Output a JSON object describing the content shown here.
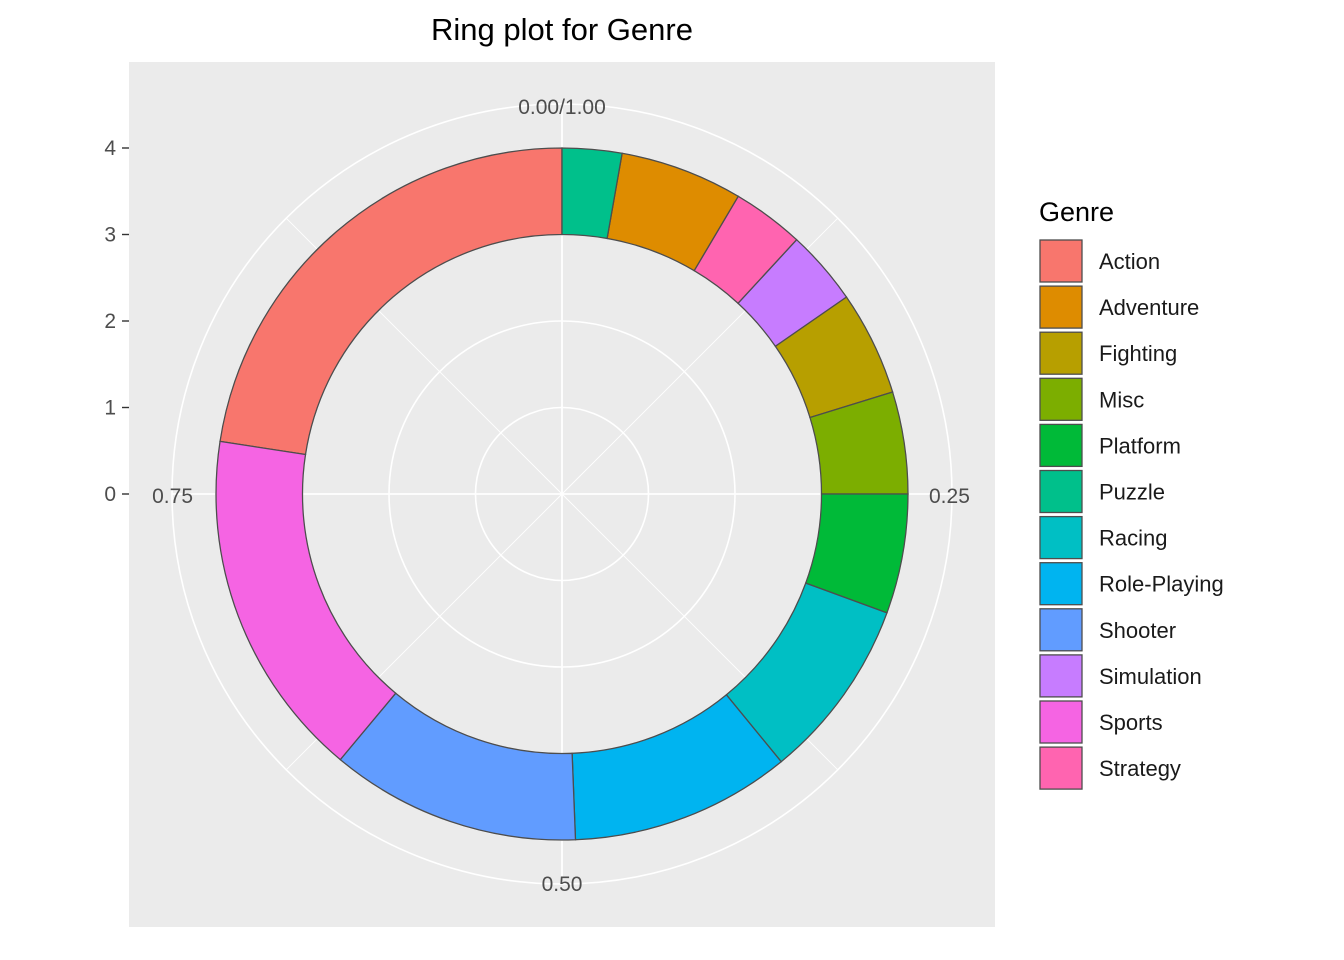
{
  "chart_data": {
    "type": "pie",
    "variant": "ring",
    "title": "Ring plot for Genre",
    "legend": {
      "title": "Genre",
      "position": "right"
    },
    "theta_ticks": [
      "0.00/1.00",
      "0.25",
      "0.50",
      "0.75"
    ],
    "radial_ticks": [
      "0",
      "1",
      "2",
      "3",
      "4"
    ],
    "radial_range": [
      0,
      4
    ],
    "ring_inner": 3,
    "ring_outer": 4,
    "grid": true,
    "background": "#ebebeb",
    "series": [
      {
        "name": "Action",
        "start": 0.7743,
        "end": 1.0,
        "color": "#F8766D"
      },
      {
        "name": "Adventure",
        "start": 0.0278,
        "end": 0.0851,
        "color": "#DE8C00"
      },
      {
        "name": "Fighting",
        "start": 0.1536,
        "end": 0.2024,
        "color": "#B79F00"
      },
      {
        "name": "Misc",
        "start": 0.2024,
        "end": 0.25,
        "color": "#7CAE00"
      },
      {
        "name": "Platform",
        "start": 0.25,
        "end": 0.3058,
        "color": "#00BA38"
      },
      {
        "name": "Puzzle",
        "start": 0.0,
        "end": 0.0278,
        "color": "#00C08B"
      },
      {
        "name": "Racing",
        "start": 0.3058,
        "end": 0.3908,
        "color": "#00BFC4"
      },
      {
        "name": "Role-Playing",
        "start": 0.3908,
        "end": 0.4938,
        "color": "#00B4F0"
      },
      {
        "name": "Shooter",
        "start": 0.4938,
        "end": 0.6107,
        "color": "#619CFF"
      },
      {
        "name": "Simulation",
        "start": 0.1186,
        "end": 0.1536,
        "color": "#C77CFF"
      },
      {
        "name": "Sports",
        "start": 0.6107,
        "end": 0.7743,
        "color": "#F564E3"
      },
      {
        "name": "Strategy",
        "start": 0.0851,
        "end": 0.1186,
        "color": "#FF64B0"
      }
    ]
  }
}
